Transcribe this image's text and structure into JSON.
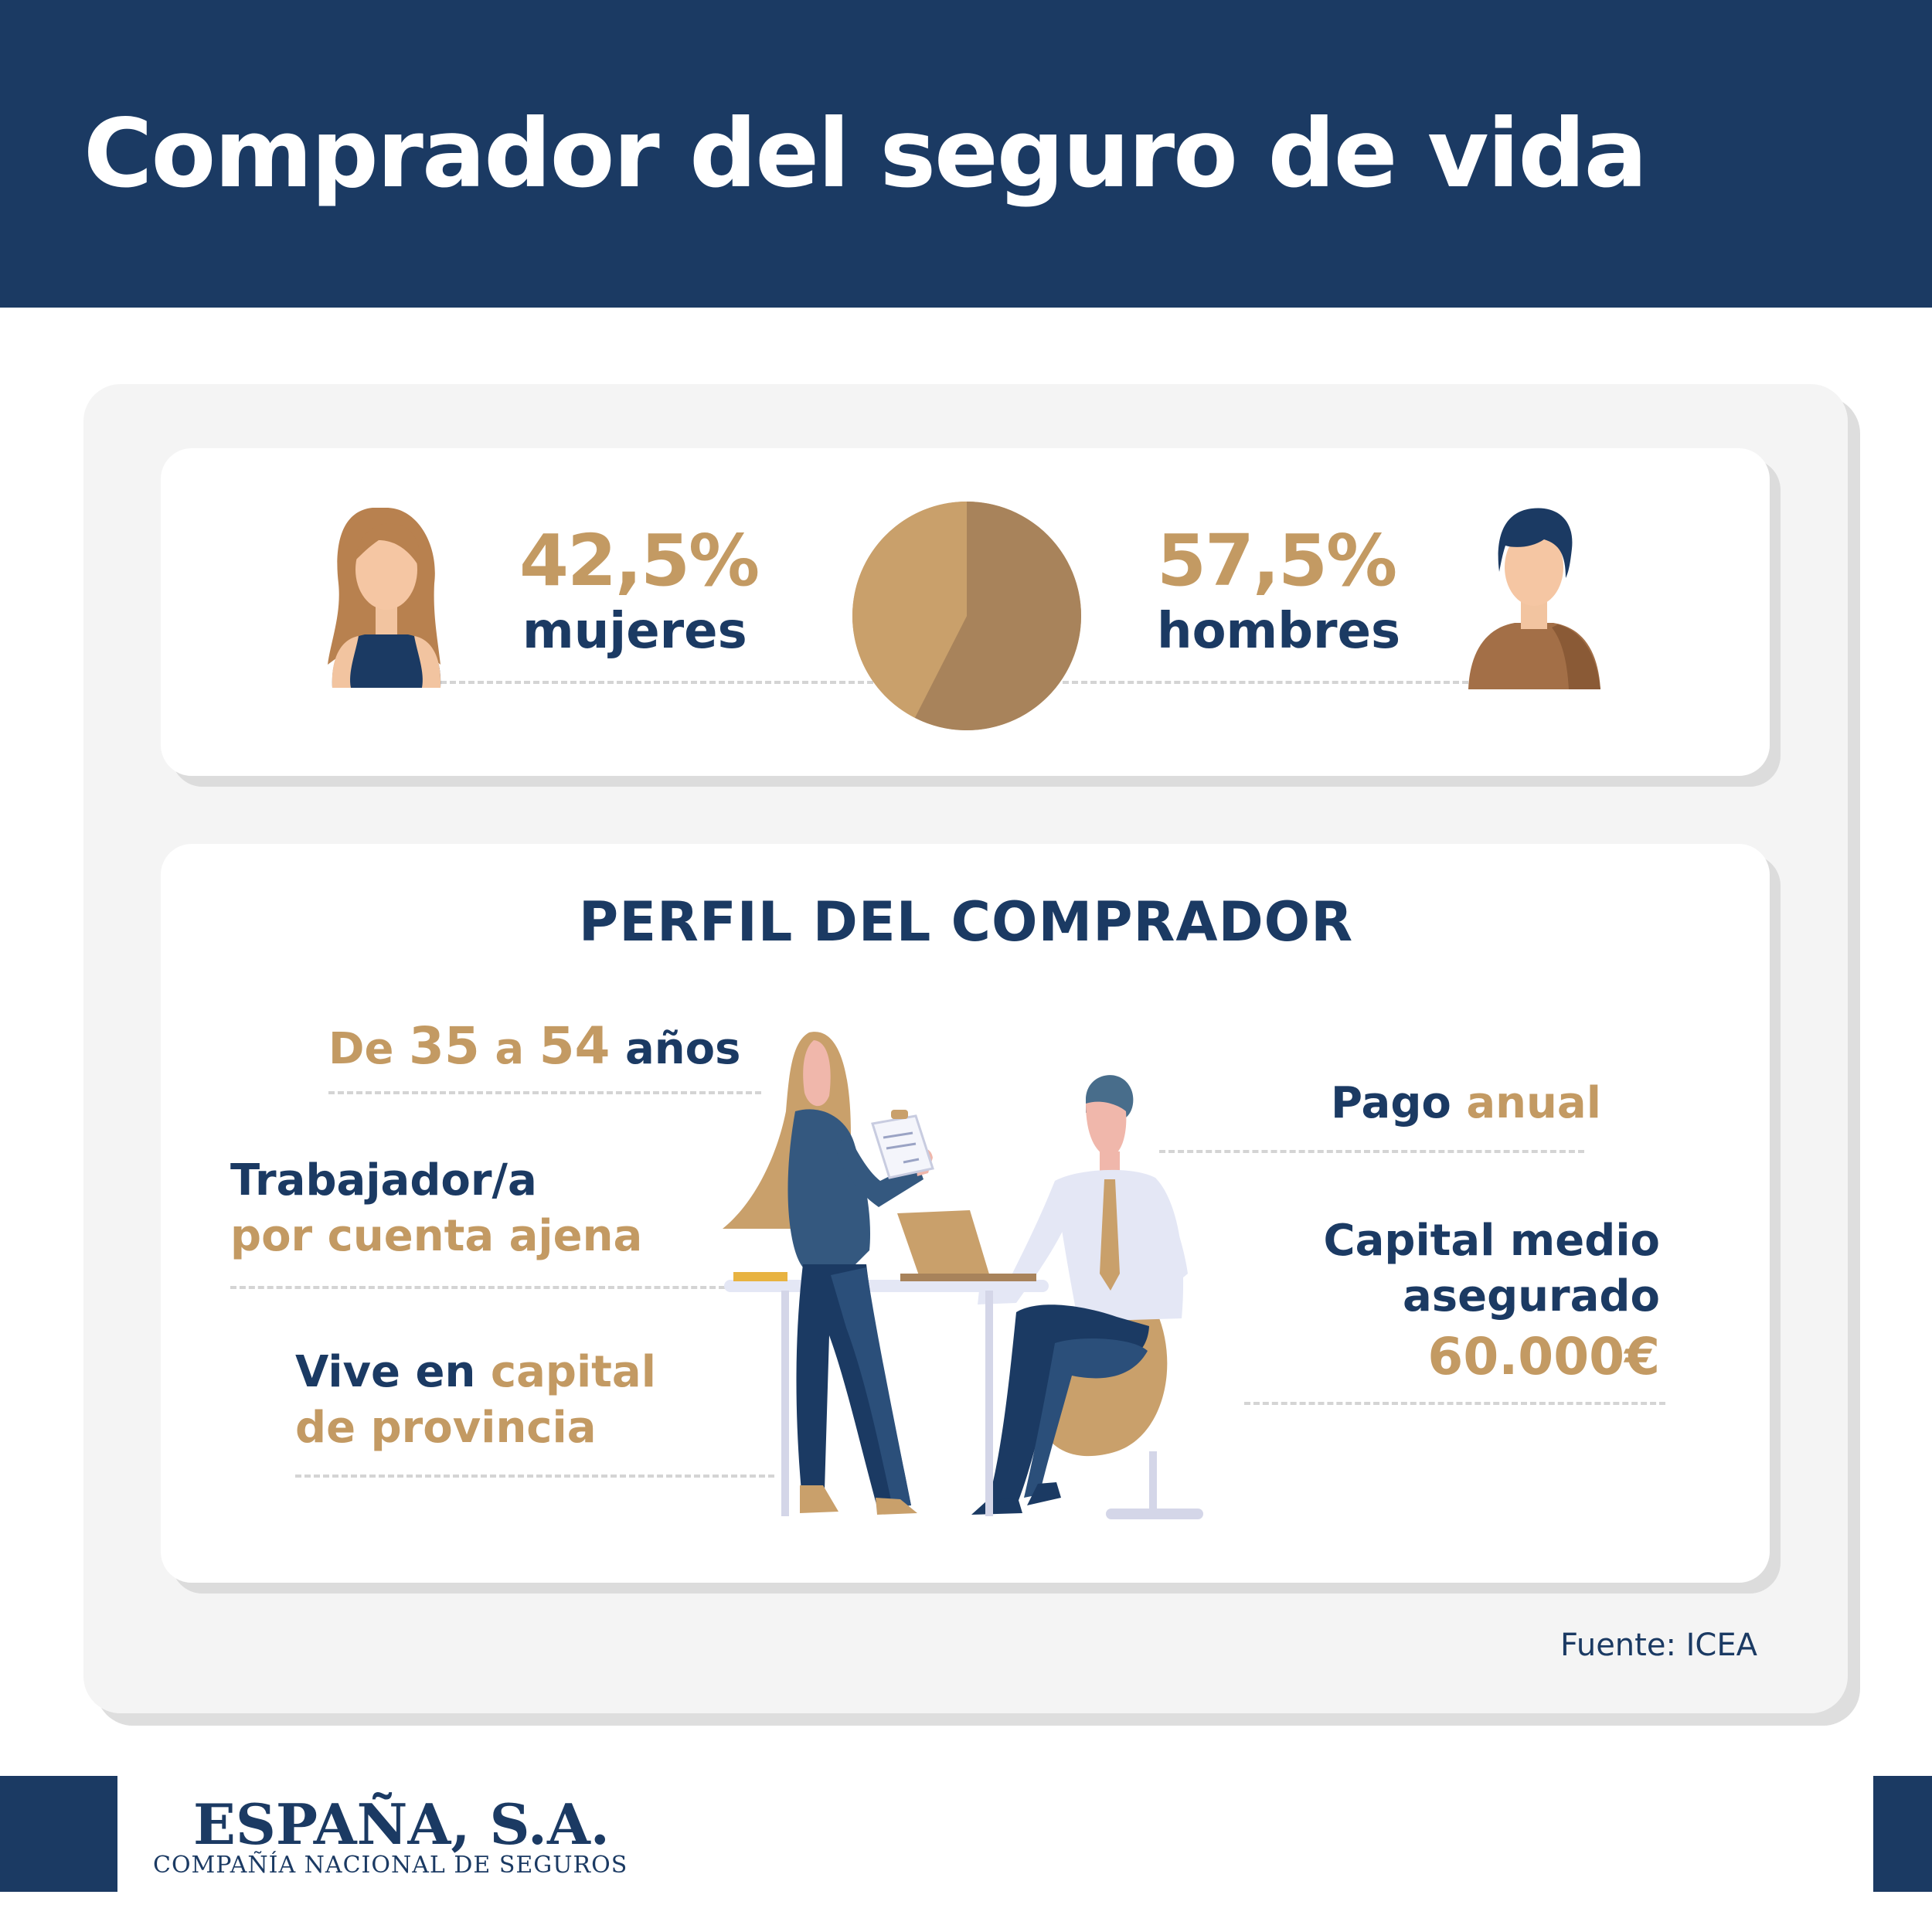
{
  "header": {
    "title": "Comprador del seguro de vida"
  },
  "gender": {
    "women": {
      "percent": "42,5%",
      "label": "mujeres",
      "value": 42.5
    },
    "men": {
      "percent": "57,5%",
      "label": "hombres",
      "value": 57.5
    }
  },
  "chart_data": {
    "type": "pie",
    "categories": [
      "mujeres",
      "hombres"
    ],
    "values": [
      42.5,
      57.5
    ],
    "colors": [
      "#c9a06b",
      "#a8835b"
    ]
  },
  "profile": {
    "title": "PERFIL DEL COMPRADOR",
    "age": {
      "prefix": "De",
      "from": "35",
      "mid": "a",
      "to": "54",
      "suffix": "años"
    },
    "worker": {
      "line1": "Trabajador/a",
      "line2": "por cuenta ajena"
    },
    "lives": {
      "part1": "Vive en",
      "part2": "capital",
      "line2": "de provincia"
    },
    "payment": {
      "part1": "Pago",
      "part2": "anual"
    },
    "capital": {
      "line1": "Capital medio",
      "line2": "asegurado",
      "amount": "60.000€"
    }
  },
  "source": "Fuente: ICEA",
  "logo": {
    "name": "ESPAÑA, S.A.",
    "subtitle": "COMPAÑÍA NACIONAL DE SEGUROS"
  },
  "colors": {
    "navy": "#1b3a63",
    "gold": "#c39a63",
    "brown": "#a8835b"
  },
  "icons": [
    "woman-avatar-icon",
    "man-avatar-icon",
    "pie-chart",
    "meeting-illustration"
  ]
}
